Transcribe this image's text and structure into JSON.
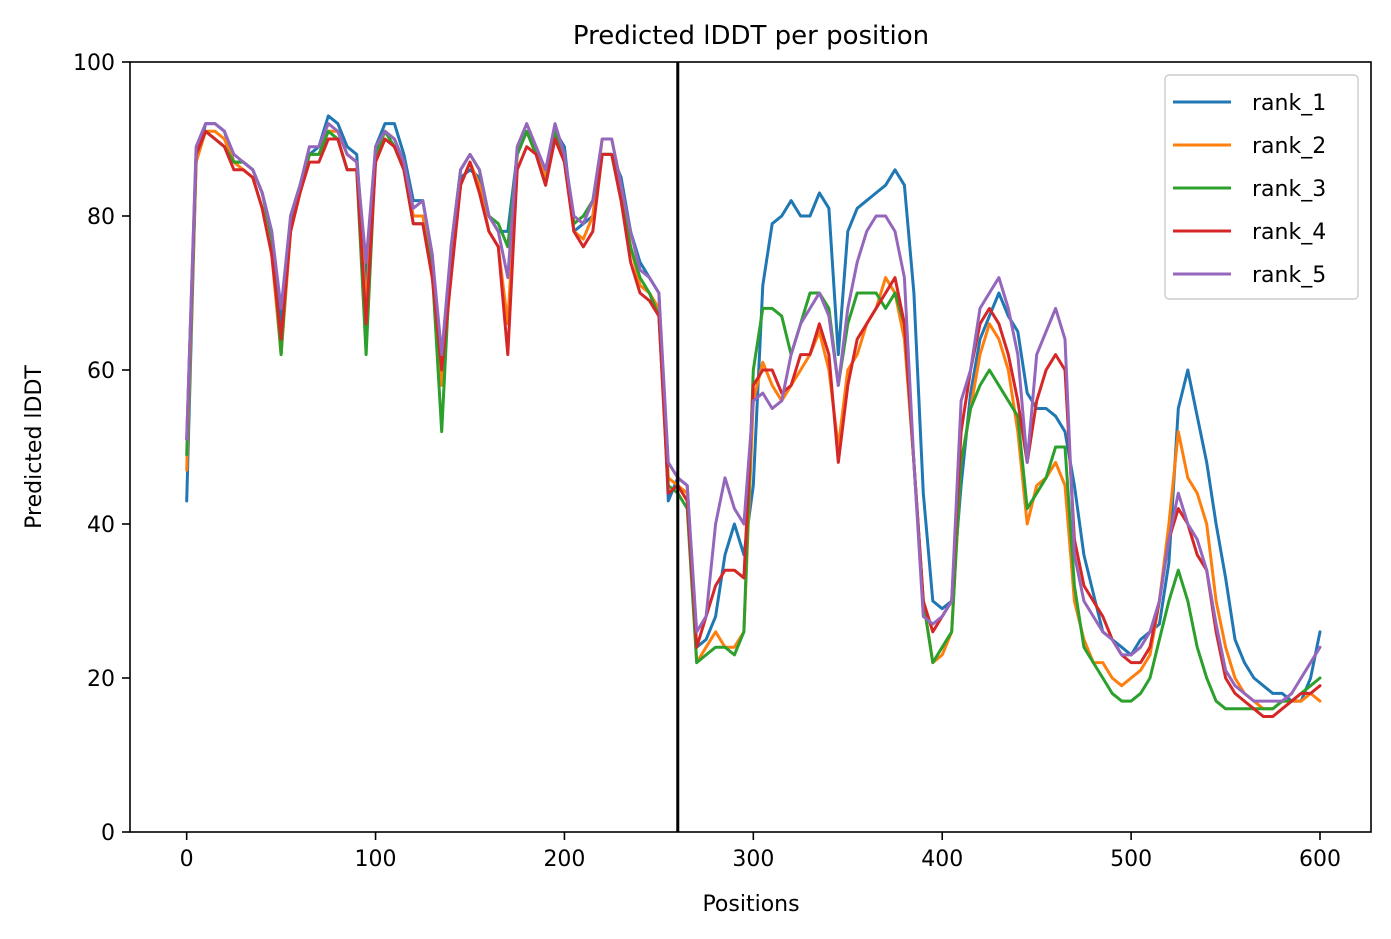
{
  "chart_data": {
    "type": "line",
    "title": "Predicted lDDT per position",
    "xlabel": "Positions",
    "ylabel": "Predicted lDDT",
    "xlim": [
      -30,
      627
    ],
    "ylim": [
      0,
      100
    ],
    "xticks": [
      0,
      100,
      200,
      300,
      400,
      500,
      600
    ],
    "yticks": [
      0,
      20,
      40,
      60,
      80,
      100
    ],
    "grid": false,
    "legend_position": "top-right",
    "vertical_line": {
      "x": 260,
      "color": "#000000"
    },
    "x_step": 5,
    "series": [
      {
        "name": "rank_1",
        "color": "#1f77b4",
        "values": [
          43,
          87,
          92,
          92,
          91,
          87,
          87,
          86,
          83,
          78,
          66,
          79,
          83,
          88,
          89,
          93,
          92,
          89,
          88,
          71,
          89,
          92,
          92,
          88,
          82,
          82,
          75,
          60,
          75,
          85,
          86,
          85,
          80,
          78,
          78,
          88,
          91,
          88,
          85,
          91,
          89,
          78,
          79,
          80,
          88,
          88,
          85,
          78,
          74,
          72,
          70,
          43,
          46,
          45,
          24,
          25,
          28,
          36,
          40,
          36,
          45,
          71,
          79,
          80,
          82,
          80,
          80,
          83,
          81,
          62,
          78,
          81,
          82,
          83,
          84,
          86,
          84,
          70,
          44,
          30,
          29,
          30,
          45,
          57,
          64,
          67,
          70,
          67,
          65,
          57,
          55,
          55,
          54,
          52,
          45,
          36,
          31,
          26,
          25,
          24,
          23,
          25,
          26,
          27,
          35,
          55,
          60,
          54,
          48,
          40,
          33,
          25,
          22,
          20,
          19,
          18,
          18,
          17,
          17,
          20,
          26
        ]
      },
      {
        "name": "rank_2",
        "color": "#ff7f0e",
        "values": [
          47,
          87,
          91,
          91,
          90,
          87,
          86,
          85,
          81,
          75,
          62,
          78,
          83,
          88,
          88,
          91,
          91,
          88,
          87,
          68,
          88,
          91,
          90,
          87,
          80,
          80,
          73,
          58,
          73,
          84,
          87,
          84,
          78,
          76,
          66,
          88,
          91,
          88,
          85,
          91,
          87,
          78,
          77,
          80,
          90,
          90,
          84,
          76,
          71,
          70,
          68,
          46,
          45,
          44,
          22,
          24,
          26,
          24,
          24,
          26,
          56,
          61,
          58,
          56,
          58,
          60,
          62,
          65,
          60,
          50,
          60,
          62,
          66,
          68,
          72,
          70,
          64,
          48,
          30,
          22,
          23,
          26,
          48,
          55,
          62,
          66,
          64,
          60,
          52,
          40,
          45,
          46,
          48,
          45,
          30,
          25,
          22,
          22,
          20,
          19,
          20,
          21,
          23,
          30,
          40,
          52,
          46,
          44,
          40,
          30,
          24,
          20,
          18,
          17,
          16,
          16,
          17,
          17,
          17,
          18,
          17
        ]
      },
      {
        "name": "rank_3",
        "color": "#2ca02c",
        "values": [
          49,
          88,
          91,
          90,
          89,
          87,
          87,
          86,
          83,
          77,
          62,
          80,
          84,
          88,
          88,
          91,
          90,
          86,
          86,
          62,
          88,
          91,
          89,
          86,
          79,
          79,
          73,
          52,
          76,
          86,
          88,
          86,
          80,
          79,
          76,
          88,
          91,
          88,
          84,
          91,
          88,
          79,
          80,
          82,
          88,
          88,
          82,
          76,
          72,
          70,
          67,
          45,
          44,
          42,
          22,
          23,
          24,
          24,
          23,
          26,
          60,
          68,
          68,
          67,
          62,
          66,
          70,
          70,
          68,
          58,
          66,
          70,
          70,
          70,
          68,
          70,
          66,
          48,
          30,
          22,
          24,
          26,
          48,
          55,
          58,
          60,
          58,
          56,
          54,
          42,
          44,
          46,
          50,
          50,
          32,
          24,
          22,
          20,
          18,
          17,
          17,
          18,
          20,
          25,
          30,
          34,
          30,
          24,
          20,
          17,
          16,
          16,
          16,
          16,
          16,
          16,
          17,
          17,
          18,
          19,
          20
        ]
      },
      {
        "name": "rank_4",
        "color": "#d62728",
        "values": [
          51,
          88,
          91,
          90,
          89,
          86,
          86,
          85,
          81,
          75,
          64,
          78,
          83,
          87,
          87,
          90,
          90,
          86,
          86,
          66,
          87,
          90,
          89,
          86,
          79,
          79,
          72,
          60,
          72,
          84,
          87,
          83,
          78,
          76,
          62,
          86,
          89,
          88,
          84,
          90,
          87,
          78,
          76,
          78,
          88,
          88,
          82,
          74,
          70,
          69,
          67,
          44,
          45,
          43,
          24,
          28,
          32,
          34,
          34,
          33,
          58,
          60,
          60,
          57,
          58,
          62,
          62,
          66,
          62,
          48,
          58,
          64,
          66,
          68,
          70,
          72,
          66,
          48,
          30,
          26,
          28,
          30,
          52,
          60,
          66,
          68,
          66,
          62,
          56,
          48,
          56,
          60,
          62,
          60,
          38,
          32,
          30,
          28,
          25,
          23,
          22,
          22,
          24,
          30,
          38,
          42,
          40,
          36,
          34,
          26,
          20,
          18,
          17,
          16,
          15,
          15,
          16,
          17,
          18,
          18,
          19
        ]
      },
      {
        "name": "rank_5",
        "color": "#9467bd",
        "values": [
          51,
          89,
          92,
          92,
          91,
          88,
          87,
          86,
          83,
          78,
          68,
          80,
          84,
          89,
          89,
          92,
          91,
          88,
          87,
          74,
          89,
          91,
          90,
          87,
          81,
          82,
          75,
          62,
          76,
          86,
          88,
          86,
          80,
          78,
          72,
          89,
          92,
          89,
          86,
          92,
          88,
          80,
          79,
          82,
          90,
          90,
          84,
          78,
          73,
          72,
          70,
          48,
          46,
          45,
          26,
          28,
          40,
          46,
          42,
          40,
          56,
          57,
          55,
          56,
          62,
          66,
          68,
          70,
          67,
          58,
          68,
          74,
          78,
          80,
          80,
          78,
          72,
          48,
          28,
          27,
          28,
          30,
          56,
          60,
          68,
          70,
          72,
          68,
          62,
          48,
          62,
          65,
          68,
          64,
          36,
          30,
          28,
          26,
          25,
          23,
          23,
          24,
          26,
          30,
          38,
          44,
          40,
          38,
          34,
          27,
          21,
          19,
          18,
          17,
          17,
          17,
          17,
          18,
          20,
          22,
          24
        ]
      }
    ]
  }
}
